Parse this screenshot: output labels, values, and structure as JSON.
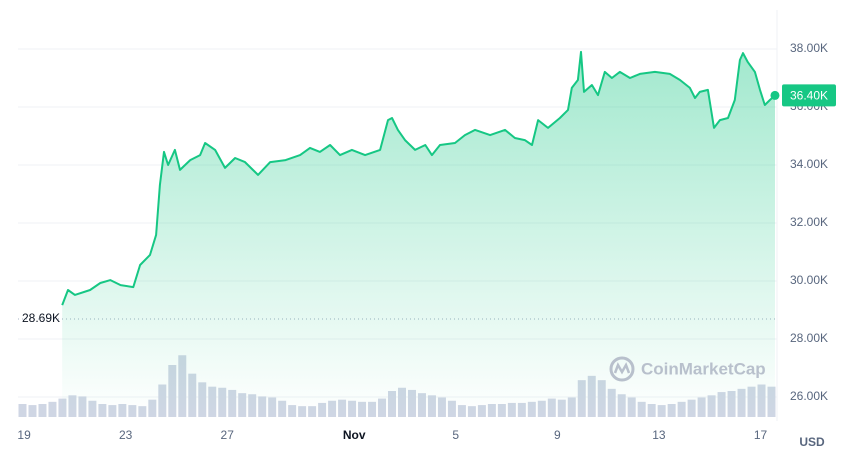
{
  "chart_data": {
    "type": "line",
    "color": "#16c784",
    "volume_color": "#cfd6e4",
    "grid": true,
    "x": [
      1.5,
      1.73,
      2.0,
      2.6,
      3.0,
      3.4,
      3.8,
      4.3,
      4.57,
      4.96,
      5.2,
      5.35,
      5.51,
      5.67,
      5.94,
      6.14,
      6.54,
      6.93,
      7.13,
      7.52,
      7.91,
      8.31,
      8.7,
      9.21,
      9.69,
      10.3,
      10.87,
      11.26,
      11.65,
      12.05,
      12.44,
      12.91,
      13.43,
      14.02,
      14.33,
      14.49,
      14.72,
      15.0,
      15.4,
      15.8,
      16.06,
      16.38,
      16.97,
      17.36,
      17.76,
      18.35,
      18.94,
      19.33,
      19.72,
      20.0,
      20.24,
      20.63,
      21.1,
      21.42,
      21.57,
      21.81,
      21.93,
      22.05,
      22.36,
      22.6,
      22.87,
      23.15,
      23.46,
      23.86,
      24.25,
      24.84,
      25.43,
      25.83,
      26.22,
      26.42,
      26.61,
      26.93,
      27.17,
      27.4,
      27.72,
      27.99,
      28.19,
      28.31,
      28.5,
      28.78,
      28.98,
      29.17,
      29.37,
      29.57
    ],
    "values": [
      29170,
      29690,
      29520,
      29690,
      29930,
      30030,
      29860,
      29790,
      30550,
      30900,
      31590,
      33310,
      34450,
      34000,
      34520,
      33830,
      34170,
      34340,
      34760,
      34520,
      33900,
      34240,
      34100,
      33660,
      34100,
      34170,
      34340,
      34590,
      34450,
      34690,
      34340,
      34520,
      34340,
      34520,
      35550,
      35620,
      35210,
      34860,
      34520,
      34690,
      34340,
      34690,
      34760,
      35030,
      35210,
      35030,
      35210,
      34930,
      34860,
      34690,
      35550,
      35280,
      35620,
      35900,
      36660,
      36930,
      37900,
      36520,
      36760,
      36410,
      37210,
      37000,
      37210,
      37000,
      37140,
      37210,
      37140,
      36930,
      36660,
      36310,
      36520,
      36590,
      35280,
      35550,
      35620,
      36240,
      37620,
      37860,
      37550,
      37210,
      36590,
      36070,
      36240,
      36400
    ],
    "last": {
      "value": 36400,
      "label": "36.40K"
    },
    "reference": {
      "value": 28690,
      "label": "28.69K"
    },
    "volume": {
      "values": [
        12,
        11,
        12,
        14,
        17,
        20,
        19,
        15,
        12,
        11,
        12,
        11,
        10,
        16,
        30,
        48,
        57,
        40,
        32,
        28,
        27,
        25,
        22,
        21,
        19,
        18,
        15,
        11,
        10,
        10,
        13,
        15,
        16,
        15,
        14,
        14,
        17,
        24,
        27,
        25,
        22,
        20,
        18,
        15,
        11,
        10,
        11,
        12,
        12,
        13,
        13,
        14,
        15,
        17,
        16,
        18,
        34,
        38,
        34,
        26,
        21,
        18,
        14,
        12,
        11,
        12,
        14,
        16,
        18,
        20,
        23,
        24,
        26,
        28,
        30,
        28
      ],
      "ylim": [
        0,
        60
      ]
    },
    "xlim": [
      -0.24,
      29.65
    ],
    "xticks": [
      {
        "value": 0,
        "label": "19"
      },
      {
        "value": 4,
        "label": "23"
      },
      {
        "value": 8,
        "label": "27"
      },
      {
        "value": 13,
        "label": "Nov"
      },
      {
        "value": 17,
        "label": "5"
      },
      {
        "value": 21,
        "label": "9"
      },
      {
        "value": 25,
        "label": "13"
      },
      {
        "value": 29,
        "label": "17"
      }
    ],
    "ylim": [
      25310,
      39345
    ],
    "yticks": [
      {
        "value": 26000,
        "label": "26.00K"
      },
      {
        "value": 28000,
        "label": "28.00K"
      },
      {
        "value": 30000,
        "label": "30.00K"
      },
      {
        "value": 32000,
        "label": "32.00K"
      },
      {
        "value": 34000,
        "label": "34.00K"
      },
      {
        "value": 36000,
        "label": "36.00K"
      },
      {
        "value": 38000,
        "label": "38.00K"
      }
    ],
    "currency": "USD",
    "watermark": "CoinMarketCap"
  }
}
